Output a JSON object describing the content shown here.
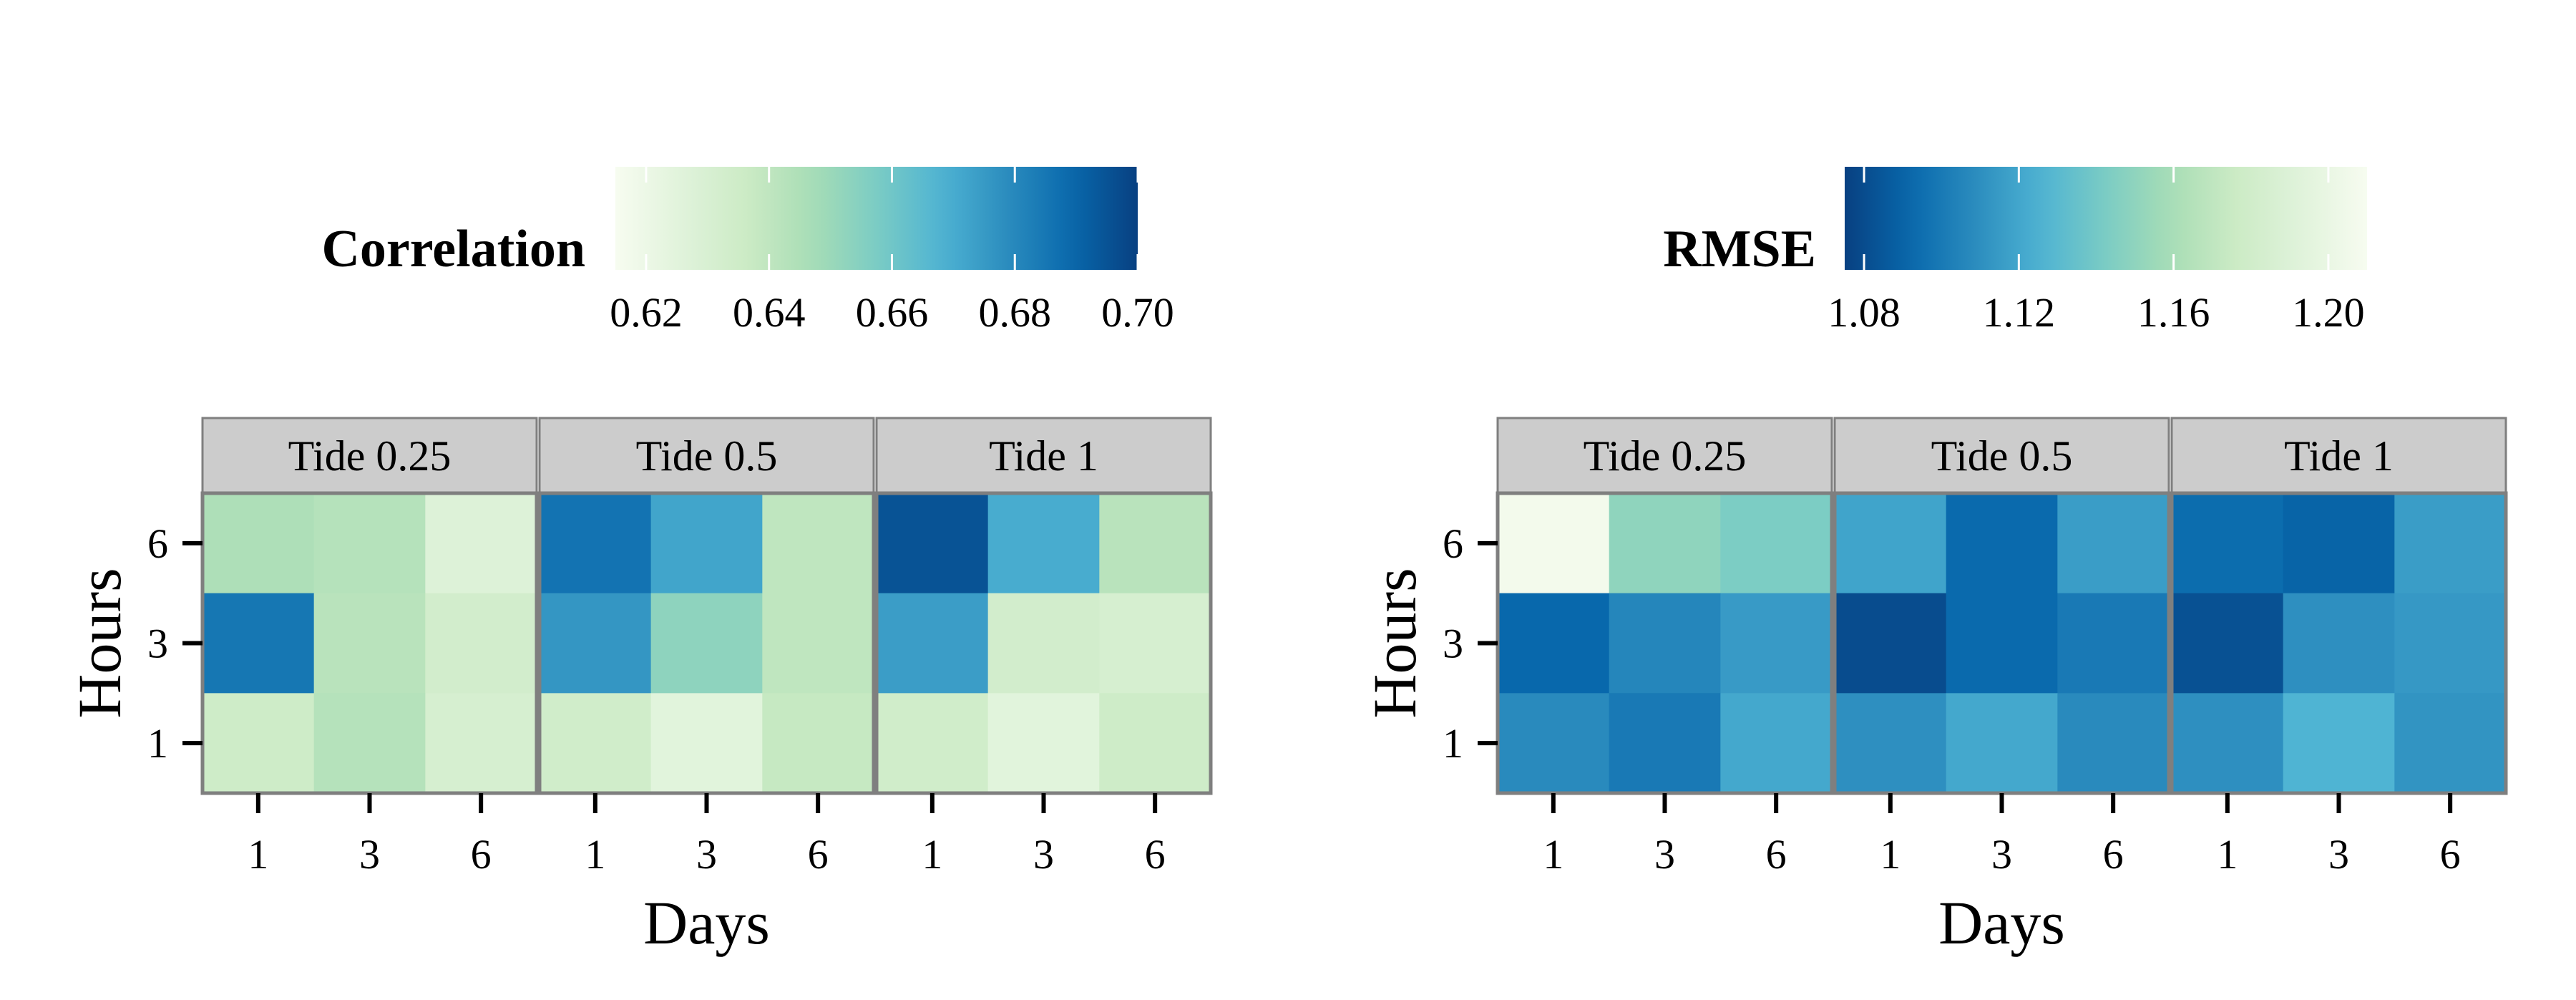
{
  "chart_data": [
    {
      "type": "heatmap",
      "legend": {
        "title": "Correlation",
        "ticks": [
          "0.62",
          "0.64",
          "0.66",
          "0.68",
          "0.70"
        ],
        "tick_values": [
          0.62,
          0.64,
          0.66,
          0.68,
          0.7
        ],
        "range": [
          0.615,
          0.7
        ],
        "reversed": false,
        "placement": "top"
      },
      "xlabel": "Days",
      "ylabel": "Hours",
      "x_ticks": [
        "1",
        "3",
        "6"
      ],
      "y_ticks": [
        "1",
        "3",
        "6"
      ],
      "facets": [
        {
          "label": "Tide 0.25",
          "cells": [
            {
              "days": 1,
              "hours": 6,
              "value": 0.645
            },
            {
              "days": 3,
              "hours": 6,
              "value": 0.643
            },
            {
              "days": 6,
              "hours": 6,
              "value": 0.627
            },
            {
              "days": 1,
              "hours": 3,
              "value": 0.685
            },
            {
              "days": 3,
              "hours": 3,
              "value": 0.642
            },
            {
              "days": 6,
              "hours": 3,
              "value": 0.633
            },
            {
              "days": 1,
              "hours": 1,
              "value": 0.635
            },
            {
              "days": 3,
              "hours": 1,
              "value": 0.643
            },
            {
              "days": 6,
              "hours": 1,
              "value": 0.631
            }
          ]
        },
        {
          "label": "Tide 0.5",
          "cells": [
            {
              "days": 1,
              "hours": 6,
              "value": 0.686
            },
            {
              "days": 3,
              "hours": 6,
              "value": 0.672
            },
            {
              "days": 6,
              "hours": 6,
              "value": 0.64
            },
            {
              "days": 1,
              "hours": 3,
              "value": 0.676
            },
            {
              "days": 3,
              "hours": 3,
              "value": 0.653
            },
            {
              "days": 6,
              "hours": 3,
              "value": 0.64
            },
            {
              "days": 1,
              "hours": 1,
              "value": 0.634
            },
            {
              "days": 3,
              "hours": 1,
              "value": 0.625
            },
            {
              "days": 6,
              "hours": 1,
              "value": 0.638
            }
          ]
        },
        {
          "label": "Tide 1",
          "cells": [
            {
              "days": 1,
              "hours": 6,
              "value": 0.695
            },
            {
              "days": 3,
              "hours": 6,
              "value": 0.67
            },
            {
              "days": 6,
              "hours": 6,
              "value": 0.642
            },
            {
              "days": 1,
              "hours": 3,
              "value": 0.674
            },
            {
              "days": 3,
              "hours": 3,
              "value": 0.633
            },
            {
              "days": 6,
              "hours": 3,
              "value": 0.631
            },
            {
              "days": 1,
              "hours": 1,
              "value": 0.634
            },
            {
              "days": 3,
              "hours": 1,
              "value": 0.625
            },
            {
              "days": 6,
              "hours": 1,
              "value": 0.635
            }
          ]
        }
      ]
    },
    {
      "type": "heatmap",
      "legend": {
        "title": "RMSE",
        "ticks": [
          "1.08",
          "1.12",
          "1.16",
          "1.20"
        ],
        "tick_values": [
          1.08,
          1.12,
          1.16,
          1.2
        ],
        "range": [
          1.075,
          1.21
        ],
        "reversed": true,
        "placement": "top"
      },
      "xlabel": "Days",
      "ylabel": "Hours",
      "x_ticks": [
        "1",
        "3",
        "6"
      ],
      "y_ticks": [
        "1",
        "3",
        "6"
      ],
      "facets": [
        {
          "label": "Tide 0.25",
          "cells": [
            {
              "days": 1,
              "hours": 6,
              "value": 1.207
            },
            {
              "days": 3,
              "hours": 6,
              "value": 1.15
            },
            {
              "days": 6,
              "hours": 6,
              "value": 1.143
            },
            {
              "days": 1,
              "hours": 3,
              "value": 1.092
            },
            {
              "days": 3,
              "hours": 3,
              "value": 1.106
            },
            {
              "days": 6,
              "hours": 3,
              "value": 1.115
            },
            {
              "days": 1,
              "hours": 1,
              "value": 1.108
            },
            {
              "days": 3,
              "hours": 1,
              "value": 1.1
            },
            {
              "days": 6,
              "hours": 1,
              "value": 1.121
            }
          ]
        },
        {
          "label": "Tide 0.5",
          "cells": [
            {
              "days": 1,
              "hours": 6,
              "value": 1.119
            },
            {
              "days": 3,
              "hours": 6,
              "value": 1.093
            },
            {
              "days": 6,
              "hours": 6,
              "value": 1.116
            },
            {
              "days": 1,
              "hours": 3,
              "value": 1.08
            },
            {
              "days": 3,
              "hours": 3,
              "value": 1.093
            },
            {
              "days": 6,
              "hours": 3,
              "value": 1.1
            },
            {
              "days": 1,
              "hours": 1,
              "value": 1.11
            },
            {
              "days": 3,
              "hours": 1,
              "value": 1.121
            },
            {
              "days": 6,
              "hours": 1,
              "value": 1.108
            }
          ]
        },
        {
          "label": "Tide 1",
          "cells": [
            {
              "days": 1,
              "hours": 6,
              "value": 1.094
            },
            {
              "days": 3,
              "hours": 6,
              "value": 1.09
            },
            {
              "days": 6,
              "hours": 6,
              "value": 1.116
            },
            {
              "days": 1,
              "hours": 3,
              "value": 1.082
            },
            {
              "days": 3,
              "hours": 3,
              "value": 1.11
            },
            {
              "days": 6,
              "hours": 3,
              "value": 1.114
            },
            {
              "days": 1,
              "hours": 1,
              "value": 1.11
            },
            {
              "days": 3,
              "hours": 1,
              "value": 1.126
            },
            {
              "days": 6,
              "hours": 1,
              "value": 1.112
            }
          ]
        }
      ]
    }
  ],
  "colors": {
    "palette": [
      "#f7fcf0",
      "#e0f3db",
      "#ccebc5",
      "#a8ddb5",
      "#7bccc4",
      "#4eb3d3",
      "#2b8cbe",
      "#0868ac",
      "#084081"
    ],
    "strip_fill": "#cccccc",
    "strip_border": "#7f7f7f",
    "panel_border": "#7f7f7f"
  }
}
